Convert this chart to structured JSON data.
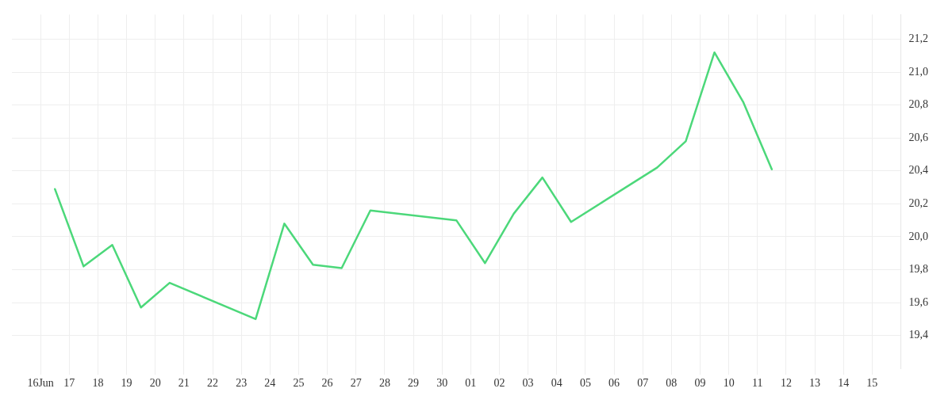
{
  "chart_data": {
    "type": "line",
    "x": [
      "--06-16T12:00",
      "--06-17T12:00",
      "--06-18T12:00",
      "--06-19T12:00",
      "--06-20T12:00",
      "--06-23T12:00",
      "--06-24T12:00",
      "--06-25T12:00",
      "--06-26T12:00",
      "--06-27T12:00",
      "--06-30T12:00",
      "--07-01T12:00",
      "--07-02T12:00",
      "--07-03T12:00",
      "--07-04T12:00",
      "--07-07T12:00",
      "--07-08T12:00",
      "--07-09T12:00",
      "--07-10T12:00",
      "--07-11T12:00"
    ],
    "series": [
      {
        "color": "#4cd87a",
        "values": [
          20.29,
          19.82,
          19.95,
          19.57,
          19.72,
          19.5,
          20.08,
          19.83,
          19.81,
          20.16,
          20.1,
          19.84,
          20.14,
          20.36,
          20.09,
          20.42,
          20.58,
          21.12,
          20.82,
          20.41
        ]
      }
    ],
    "xlim": [
      "--06-15",
      "--07-16"
    ],
    "xticks": [
      {
        "value": "--06-16",
        "label": "16Jun"
      },
      {
        "value": "--06-17",
        "label": "17"
      },
      {
        "value": "--06-18",
        "label": "18"
      },
      {
        "value": "--06-19",
        "label": "19"
      },
      {
        "value": "--06-20",
        "label": "20"
      },
      {
        "value": "--06-21",
        "label": "21"
      },
      {
        "value": "--06-22",
        "label": "22"
      },
      {
        "value": "--06-23",
        "label": "23"
      },
      {
        "value": "--06-24",
        "label": "24"
      },
      {
        "value": "--06-25",
        "label": "25"
      },
      {
        "value": "--06-26",
        "label": "26"
      },
      {
        "value": "--06-27",
        "label": "27"
      },
      {
        "value": "--06-28",
        "label": "28"
      },
      {
        "value": "--06-29",
        "label": "29"
      },
      {
        "value": "--06-30",
        "label": "30"
      },
      {
        "value": "--07-01",
        "label": "01"
      },
      {
        "value": "--07-02",
        "label": "02"
      },
      {
        "value": "--07-03",
        "label": "03"
      },
      {
        "value": "--07-04",
        "label": "04"
      },
      {
        "value": "--07-05",
        "label": "05"
      },
      {
        "value": "--07-06",
        "label": "06"
      },
      {
        "value": "--07-07",
        "label": "07"
      },
      {
        "value": "--07-08",
        "label": "08"
      },
      {
        "value": "--07-09",
        "label": "09"
      },
      {
        "value": "--07-10",
        "label": "10"
      },
      {
        "value": "--07-11",
        "label": "11"
      },
      {
        "value": "--07-12",
        "label": "12"
      },
      {
        "value": "--07-13",
        "label": "13"
      },
      {
        "value": "--07-14",
        "label": "14"
      },
      {
        "value": "--07-15",
        "label": "15"
      }
    ],
    "ylim": [
      19.2,
      21.35
    ],
    "yticks": [
      {
        "value": 19.4,
        "label": "19,4"
      },
      {
        "value": 19.6,
        "label": "19,6"
      },
      {
        "value": 19.8,
        "label": "19,8"
      },
      {
        "value": 20.0,
        "label": "20,0"
      },
      {
        "value": 20.2,
        "label": "20,2"
      },
      {
        "value": 20.4,
        "label": "20,4"
      },
      {
        "value": 20.6,
        "label": "20,6"
      },
      {
        "value": 20.8,
        "label": "20,8"
      },
      {
        "value": 21.0,
        "label": "21,0"
      },
      {
        "value": 21.2,
        "label": "21,2"
      }
    ],
    "grid": true,
    "marker": "none",
    "line_style": "solid"
  }
}
